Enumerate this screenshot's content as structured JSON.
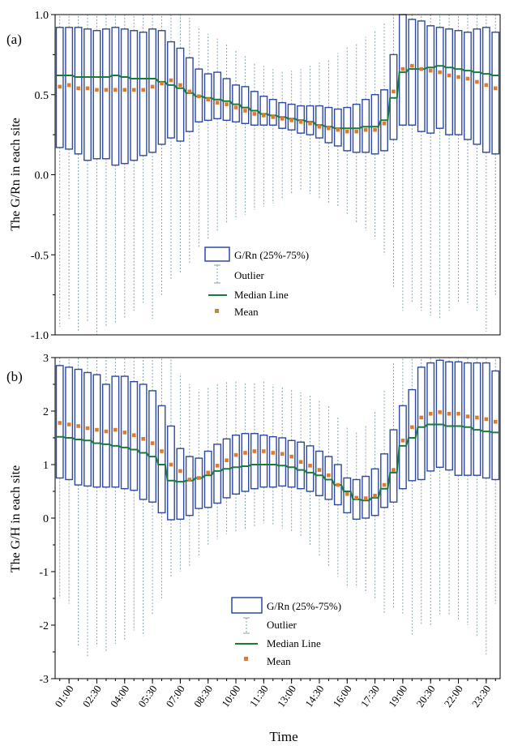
{
  "chart_data": [
    {
      "type": "box",
      "panel_label": "(a)",
      "ylabel": "The G/Rn in each site",
      "ylim": [
        -1.0,
        1.0
      ],
      "yticks": [
        -1.0,
        -0.5,
        0.0,
        0.5,
        1.0
      ],
      "ytick_labels": [
        "-1.0",
        "-0.5",
        "0.0",
        "0.5",
        "1.0"
      ],
      "legend": {
        "placement": "center",
        "entries": [
          "G/Rn (25%-75%)",
          "Outlier",
          "Median Line",
          "Mean"
        ]
      },
      "q1": [
        0.17,
        0.16,
        0.13,
        0.09,
        0.1,
        0.1,
        0.06,
        0.07,
        0.09,
        0.12,
        0.14,
        0.19,
        0.23,
        0.21,
        0.27,
        0.33,
        0.34,
        0.35,
        0.34,
        0.33,
        0.32,
        0.31,
        0.31,
        0.31,
        0.29,
        0.28,
        0.26,
        0.25,
        0.23,
        0.2,
        0.18,
        0.15,
        0.14,
        0.14,
        0.13,
        0.15,
        0.22,
        0.31,
        0.31,
        0.27,
        0.26,
        0.29,
        0.25,
        0.25,
        0.22,
        0.19,
        0.14,
        0.13
      ],
      "q3": [
        0.92,
        0.92,
        0.92,
        0.91,
        0.9,
        0.91,
        0.92,
        0.91,
        0.9,
        0.89,
        0.91,
        0.9,
        0.83,
        0.79,
        0.73,
        0.66,
        0.63,
        0.64,
        0.6,
        0.56,
        0.55,
        0.52,
        0.49,
        0.47,
        0.45,
        0.44,
        0.43,
        0.43,
        0.43,
        0.42,
        0.41,
        0.42,
        0.44,
        0.47,
        0.5,
        0.53,
        0.75,
        1.0,
        0.97,
        0.96,
        0.93,
        0.92,
        0.91,
        0.9,
        0.89,
        0.91,
        0.92,
        0.89
      ],
      "median": [
        0.62,
        0.62,
        0.61,
        0.61,
        0.61,
        0.61,
        0.62,
        0.61,
        0.6,
        0.6,
        0.6,
        0.58,
        0.56,
        0.54,
        0.51,
        0.49,
        0.48,
        0.47,
        0.46,
        0.44,
        0.42,
        0.4,
        0.38,
        0.37,
        0.36,
        0.35,
        0.34,
        0.33,
        0.31,
        0.3,
        0.29,
        0.29,
        0.29,
        0.3,
        0.3,
        0.34,
        0.48,
        0.64,
        0.66,
        0.66,
        0.67,
        0.68,
        0.67,
        0.66,
        0.65,
        0.64,
        0.63,
        0.62
      ],
      "mean": [
        0.55,
        0.56,
        0.54,
        0.54,
        0.53,
        0.53,
        0.53,
        0.53,
        0.53,
        0.53,
        0.55,
        0.57,
        0.59,
        0.56,
        0.52,
        0.49,
        0.47,
        0.45,
        0.44,
        0.42,
        0.4,
        0.38,
        0.37,
        0.36,
        0.35,
        0.34,
        0.33,
        0.32,
        0.3,
        0.29,
        0.28,
        0.27,
        0.27,
        0.28,
        0.28,
        0.32,
        0.52,
        0.66,
        0.68,
        0.66,
        0.65,
        0.64,
        0.62,
        0.61,
        0.6,
        0.58,
        0.56,
        0.54
      ],
      "whisker_low": [
        -0.95,
        -0.9,
        -0.98,
        -0.92,
        -1.0,
        -0.95,
        -0.93,
        -0.9,
        -0.85,
        -0.8,
        -0.9,
        -0.75,
        -0.65,
        -0.62,
        -0.55,
        -0.45,
        -0.4,
        -0.35,
        -0.3,
        -0.28,
        -0.25,
        -0.22,
        -0.2,
        -0.18,
        -0.15,
        -0.12,
        -0.1,
        -0.12,
        -0.15,
        -0.18,
        -0.2,
        -0.25,
        -0.3,
        -0.35,
        -0.4,
        -0.5,
        -0.7,
        -0.85,
        -0.8,
        -0.85,
        -0.88,
        -0.9,
        -0.85,
        -0.8,
        -0.8,
        -0.85,
        -0.98,
        -0.75
      ],
      "whisker_high": [
        1.0,
        1.0,
        1.0,
        1.0,
        1.0,
        1.0,
        1.0,
        1.0,
        1.0,
        1.0,
        1.0,
        1.0,
        1.0,
        1.0,
        0.98,
        0.92,
        0.88,
        0.85,
        0.82,
        0.78,
        0.74,
        0.7,
        0.68,
        0.66,
        0.65,
        0.65,
        0.66,
        0.68,
        0.7,
        0.72,
        0.76,
        0.8,
        0.82,
        0.86,
        0.9,
        0.95,
        1.0,
        1.0,
        1.0,
        1.0,
        1.0,
        1.0,
        1.0,
        1.0,
        1.0,
        1.0,
        1.0,
        1.0
      ]
    },
    {
      "type": "box",
      "panel_label": "(b)",
      "ylabel": "The G/H in each site",
      "xlabel": "Time",
      "ylim": [
        -3,
        3
      ],
      "yticks": [
        -3,
        -2,
        -1,
        0,
        1,
        2,
        3
      ],
      "ytick_labels": [
        "-3",
        "-2",
        "-1",
        "0",
        "1",
        "2",
        "3"
      ],
      "x_tick_labels": [
        "01:00",
        "02:30",
        "04:00",
        "05:30",
        "07:00",
        "08:30",
        "10:00",
        "11:30",
        "13:00",
        "14:30",
        "16:00",
        "17:30",
        "19:00",
        "20:30",
        "22:00",
        "23:30"
      ],
      "legend": {
        "placement": "bottom-center",
        "entries": [
          "G/Rn (25%-75%)",
          "Outlier",
          "Median Line",
          "Mean"
        ]
      },
      "q1": [
        0.75,
        0.72,
        0.62,
        0.6,
        0.58,
        0.58,
        0.58,
        0.55,
        0.52,
        0.35,
        0.3,
        0.1,
        -0.03,
        -0.02,
        0.05,
        0.18,
        0.2,
        0.28,
        0.38,
        0.45,
        0.5,
        0.55,
        0.58,
        0.58,
        0.6,
        0.58,
        0.55,
        0.5,
        0.42,
        0.35,
        0.25,
        0.1,
        -0.02,
        0.0,
        0.05,
        0.2,
        0.3,
        0.55,
        0.7,
        0.72,
        0.88,
        0.95,
        0.9,
        0.8,
        0.8,
        0.8,
        0.75,
        0.72
      ],
      "q3": [
        2.85,
        2.82,
        2.78,
        2.72,
        2.68,
        2.5,
        2.65,
        2.65,
        2.55,
        2.5,
        2.38,
        2.1,
        1.72,
        1.3,
        1.15,
        1.12,
        1.25,
        1.38,
        1.48,
        1.55,
        1.58,
        1.58,
        1.55,
        1.52,
        1.5,
        1.45,
        1.42,
        1.35,
        1.25,
        1.15,
        1.0,
        0.75,
        0.72,
        0.78,
        0.92,
        1.2,
        1.65,
        2.1,
        2.4,
        2.82,
        2.9,
        2.95,
        2.92,
        2.92,
        2.9,
        2.9,
        2.9,
        2.75
      ],
      "median": [
        1.52,
        1.5,
        1.47,
        1.45,
        1.4,
        1.38,
        1.35,
        1.32,
        1.28,
        1.22,
        1.15,
        1.0,
        0.7,
        0.68,
        0.7,
        0.75,
        0.8,
        0.88,
        0.92,
        0.95,
        0.97,
        1.0,
        1.0,
        1.0,
        0.98,
        0.95,
        0.9,
        0.85,
        0.8,
        0.72,
        0.62,
        0.5,
        0.35,
        0.33,
        0.38,
        0.55,
        0.85,
        1.35,
        1.5,
        1.7,
        1.75,
        1.75,
        1.72,
        1.72,
        1.7,
        1.65,
        1.62,
        1.6
      ],
      "mean": [
        1.78,
        1.75,
        1.72,
        1.68,
        1.65,
        1.62,
        1.65,
        1.6,
        1.55,
        1.48,
        1.4,
        1.25,
        1.0,
        0.88,
        0.72,
        0.75,
        0.85,
        0.98,
        1.08,
        1.18,
        1.22,
        1.25,
        1.25,
        1.22,
        1.2,
        1.15,
        1.05,
        0.98,
        0.9,
        0.8,
        0.62,
        0.45,
        0.38,
        0.37,
        0.42,
        0.62,
        0.9,
        1.45,
        1.7,
        1.88,
        1.95,
        1.98,
        1.95,
        1.95,
        1.9,
        1.88,
        1.85,
        1.8
      ],
      "whisker_low": [
        -1.5,
        -1.6,
        -2.4,
        -2.6,
        -2.4,
        -2.5,
        -2.35,
        -2.3,
        -2.1,
        -2.2,
        -1.8,
        -1.5,
        -1.1,
        -1.0,
        -0.9,
        -0.7,
        -0.5,
        -0.4,
        -0.3,
        -0.25,
        -0.2,
        -0.15,
        -0.1,
        -0.15,
        -0.2,
        -0.25,
        -0.35,
        -0.5,
        -0.7,
        -0.9,
        -1.1,
        -1.3,
        -1.3,
        -1.4,
        -1.5,
        -1.8,
        -1.7,
        -1.8,
        -2.2,
        -2.0,
        -2.0,
        -1.8,
        -1.8,
        -1.9,
        -2.0,
        -2.2,
        -2.55,
        -1.6
      ],
      "whisker_high": [
        3,
        3,
        3,
        3,
        3,
        3,
        3,
        3,
        3,
        3,
        3,
        3,
        3,
        2.7,
        2.5,
        2.4,
        2.45,
        2.5,
        2.55,
        2.55,
        2.55,
        2.55,
        2.55,
        2.5,
        2.45,
        2.4,
        2.35,
        2.3,
        2.2,
        2.1,
        1.9,
        1.7,
        1.6,
        1.75,
        2.0,
        2.4,
        2.9,
        3,
        3,
        3,
        3,
        3,
        3,
        3,
        3,
        3,
        3,
        3
      ]
    }
  ]
}
